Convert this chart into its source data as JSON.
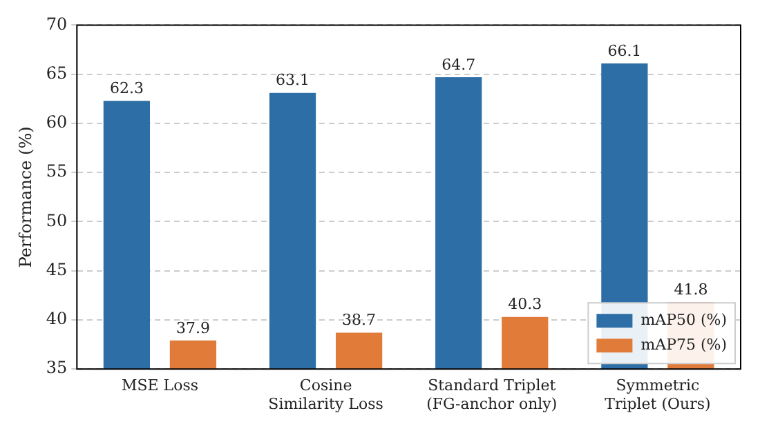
{
  "chart_data": {
    "type": "bar",
    "ylabel": "Performance (%)",
    "categories": [
      "MSE Loss",
      "Cosine\nSimilarity Loss",
      "Standard Triplet\n(FG-anchor only)",
      "Symmetric\nTriplet (Ours)"
    ],
    "series": [
      {
        "name": "mAP50 (%)",
        "color": "#2c6ea5",
        "values": [
          62.3,
          63.1,
          64.7,
          66.1
        ]
      },
      {
        "name": "mAP75 (%)",
        "color": "#e07b39",
        "values": [
          37.9,
          38.7,
          40.3,
          41.8
        ]
      }
    ],
    "ylim": [
      35,
      70
    ],
    "yticks": [
      35,
      40,
      45,
      50,
      55,
      60,
      65,
      70
    ],
    "grid": "y",
    "legend": "bottom right",
    "data_labels": true
  }
}
